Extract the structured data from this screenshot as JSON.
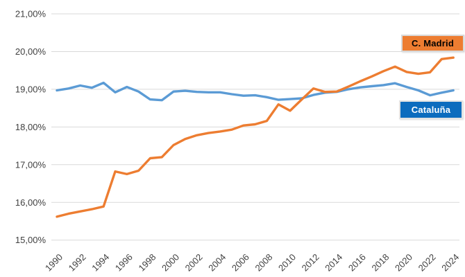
{
  "chart_data": {
    "type": "line",
    "title": "",
    "xlabel": "",
    "ylabel": "",
    "grid": "horizontal",
    "legend_position": "floating-right",
    "x": [
      1990,
      1991,
      1992,
      1993,
      1994,
      1995,
      1996,
      1997,
      1998,
      1999,
      2000,
      2001,
      2002,
      2003,
      2004,
      2005,
      2006,
      2007,
      2008,
      2009,
      2010,
      2011,
      2012,
      2013,
      2014,
      2015,
      2016,
      2017,
      2018,
      2019,
      2020,
      2021,
      2022,
      2023,
      2024
    ],
    "series": [
      {
        "name": "C. Madrid",
        "color": "#ED7D31",
        "values": [
          15.62,
          15.7,
          15.76,
          15.82,
          15.89,
          16.82,
          16.75,
          16.84,
          17.17,
          17.2,
          17.52,
          17.68,
          17.78,
          17.84,
          17.88,
          17.93,
          18.04,
          18.07,
          18.16,
          18.6,
          18.43,
          18.73,
          19.02,
          18.93,
          18.94,
          19.07,
          19.21,
          19.34,
          19.48,
          19.6,
          19.46,
          19.41,
          19.45,
          19.8,
          19.84
        ]
      },
      {
        "name": "Cataluña",
        "color": "#5B9BD5",
        "values": [
          18.97,
          19.02,
          19.1,
          19.04,
          19.17,
          18.92,
          19.06,
          18.94,
          18.73,
          18.71,
          18.94,
          18.96,
          18.93,
          18.92,
          18.92,
          18.87,
          18.83,
          18.84,
          18.79,
          18.72,
          18.74,
          18.76,
          18.85,
          18.91,
          18.93,
          19.0,
          19.05,
          19.08,
          19.11,
          19.16,
          19.06,
          18.97,
          18.84,
          18.91,
          18.97
        ]
      }
    ],
    "y_axis": {
      "min": 15,
      "max": 21,
      "tick_step": 1,
      "tick_labels": [
        "15,00%",
        "16,00%",
        "17,00%",
        "18,00%",
        "19,00%",
        "20,00%",
        "21,00%"
      ]
    },
    "x_axis": {
      "tick_years": [
        1990,
        1992,
        1994,
        1996,
        1998,
        2000,
        2002,
        2004,
        2006,
        2008,
        2010,
        2012,
        2014,
        2016,
        2018,
        2020,
        2022,
        2024
      ]
    }
  },
  "legend": {
    "madrid": {
      "label": "C. Madrid",
      "bg": "#ED7D31",
      "text_color": "#000000",
      "border": "#D9D9D9"
    },
    "cataluna": {
      "label": "Cataluña",
      "bg": "#0C6CBE",
      "text_color": "#FFFFFF",
      "border": "#E3E3E3"
    }
  },
  "colors": {
    "gridline": "#D9D9D9",
    "axis_text": "#404040",
    "background": "#FFFFFF"
  }
}
